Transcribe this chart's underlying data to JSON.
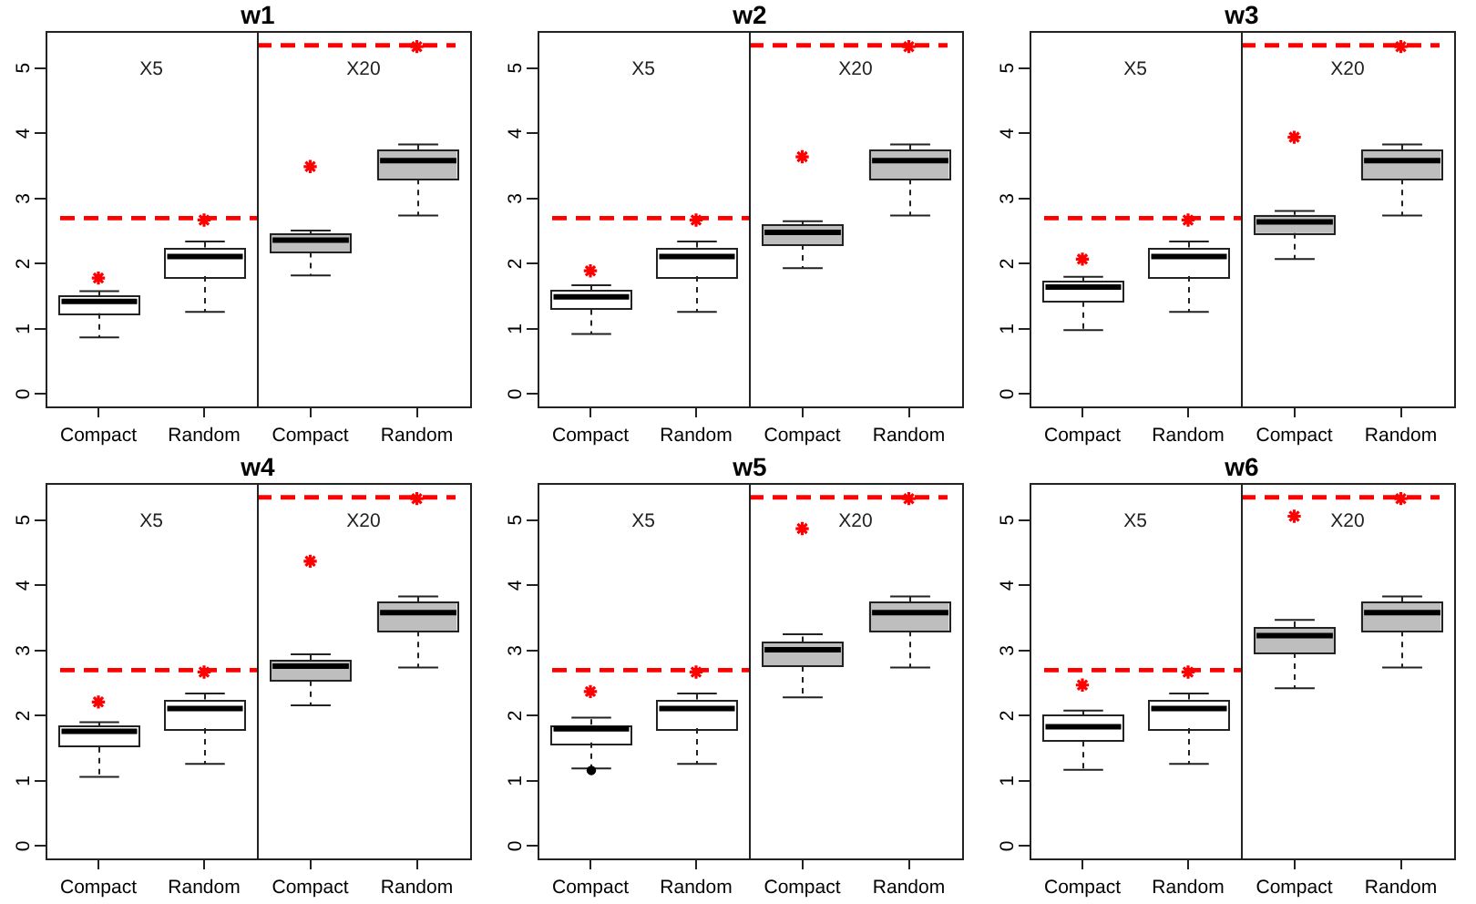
{
  "chart_data": [
    {
      "type": "box",
      "title": "w1",
      "categories": [
        "Compact",
        "Random"
      ],
      "series": [
        {
          "color": "#ffffff",
          "boxes": [
            {
              "low": 0.87,
              "q1": 1.24,
              "median": 1.42,
              "q3": 1.51,
              "high": 1.58
            },
            {
              "low": 1.26,
              "q1": 1.81,
              "median": 2.11,
              "q3": 2.25,
              "high": 2.34
            }
          ]
        },
        {
          "type": "scatter",
          "color": "#ff0000",
          "x": [
            "Compact",
            "Random"
          ],
          "values": [
            1.78,
            2.67
          ]
        }
      ],
      "ylim": [
        -0.19,
        5.57
      ],
      "yticks": [
        0,
        1,
        2,
        3,
        4,
        5
      ],
      "marker": "cross",
      "ref_lines": [
        {
          "axis": "y",
          "value": 2.7,
          "color": "#ff0000",
          "line_style": "dashed"
        }
      ],
      "annotations": [
        "X5"
      ]
    },
    {
      "type": "box",
      "categories": [
        "Compact",
        "Random"
      ],
      "series": [
        {
          "color": "#bebebe",
          "boxes": [
            {
              "low": 1.82,
              "q1": 2.18,
              "median": 2.36,
              "q3": 2.46,
              "high": 2.51
            },
            {
              "low": 2.74,
              "q1": 3.3,
              "median": 3.58,
              "q3": 3.74,
              "high": 3.83
            }
          ]
        },
        {
          "type": "scatter",
          "color": "#ff0000",
          "x": [
            "Compact",
            "Random"
          ],
          "values": [
            3.49,
            5.33
          ]
        }
      ],
      "ylim": [
        -0.19,
        5.57
      ],
      "tick_labels": "x",
      "marker": "cross",
      "ref_lines": [
        {
          "axis": "y",
          "value": 5.35,
          "color": "#ff0000",
          "line_style": "dashed"
        }
      ],
      "annotations": [
        "X20"
      ]
    },
    {
      "type": "box",
      "title": "w2",
      "categories": [
        "Compact",
        "Random"
      ],
      "series": [
        {
          "color": "#ffffff",
          "boxes": [
            {
              "low": 0.92,
              "q1": 1.3,
              "median": 1.49,
              "q3": 1.59,
              "high": 1.67
            },
            {
              "low": 1.26,
              "q1": 1.81,
              "median": 2.11,
              "q3": 2.25,
              "high": 2.34
            }
          ]
        },
        {
          "type": "scatter",
          "color": "#ff0000",
          "x": [
            "Compact",
            "Random"
          ],
          "values": [
            1.89,
            2.67
          ]
        }
      ],
      "ylim": [
        -0.19,
        5.57
      ],
      "yticks": [
        0,
        1,
        2,
        3,
        4,
        5
      ],
      "marker": "cross",
      "ref_lines": [
        {
          "axis": "y",
          "value": 2.7,
          "color": "#ff0000",
          "line_style": "dashed"
        }
      ],
      "annotations": [
        "X5"
      ]
    },
    {
      "type": "box",
      "categories": [
        "Compact",
        "Random"
      ],
      "series": [
        {
          "color": "#bebebe",
          "boxes": [
            {
              "low": 1.93,
              "q1": 2.3,
              "median": 2.48,
              "q3": 2.6,
              "high": 2.65
            },
            {
              "low": 2.74,
              "q1": 3.3,
              "median": 3.58,
              "q3": 3.74,
              "high": 3.83
            }
          ]
        },
        {
          "type": "scatter",
          "color": "#ff0000",
          "x": [
            "Compact",
            "Random"
          ],
          "values": [
            3.64,
            5.33
          ]
        }
      ],
      "ylim": [
        -0.19,
        5.57
      ],
      "tick_labels": "x",
      "marker": "cross",
      "ref_lines": [
        {
          "axis": "y",
          "value": 5.35,
          "color": "#ff0000",
          "line_style": "dashed"
        }
      ],
      "annotations": [
        "X20"
      ]
    },
    {
      "type": "box",
      "title": "w3",
      "categories": [
        "Compact",
        "Random"
      ],
      "series": [
        {
          "color": "#ffffff",
          "boxes": [
            {
              "low": 0.98,
              "q1": 1.42,
              "median": 1.64,
              "q3": 1.74,
              "high": 1.8
            },
            {
              "low": 1.26,
              "q1": 1.81,
              "median": 2.11,
              "q3": 2.25,
              "high": 2.34
            }
          ]
        },
        {
          "type": "scatter",
          "color": "#ff0000",
          "x": [
            "Compact",
            "Random"
          ],
          "values": [
            2.07,
            2.67
          ]
        }
      ],
      "ylim": [
        -0.19,
        5.57
      ],
      "yticks": [
        0,
        1,
        2,
        3,
        4,
        5
      ],
      "marker": "cross",
      "ref_lines": [
        {
          "axis": "y",
          "value": 2.7,
          "color": "#ff0000",
          "line_style": "dashed"
        }
      ],
      "annotations": [
        "X5"
      ]
    },
    {
      "type": "box",
      "categories": [
        "Compact",
        "Random"
      ],
      "series": [
        {
          "color": "#bebebe",
          "boxes": [
            {
              "low": 2.07,
              "q1": 2.47,
              "median": 2.64,
              "q3": 2.75,
              "high": 2.81
            },
            {
              "low": 2.74,
              "q1": 3.3,
              "median": 3.58,
              "q3": 3.74,
              "high": 3.83
            }
          ]
        },
        {
          "type": "scatter",
          "color": "#ff0000",
          "x": [
            "Compact",
            "Random"
          ],
          "values": [
            3.94,
            5.33
          ]
        }
      ],
      "ylim": [
        -0.19,
        5.57
      ],
      "tick_labels": "x",
      "marker": "cross",
      "ref_lines": [
        {
          "axis": "y",
          "value": 5.35,
          "color": "#ff0000",
          "line_style": "dashed"
        }
      ],
      "annotations": [
        "X20"
      ]
    },
    {
      "type": "box",
      "title": "w4",
      "categories": [
        "Compact",
        "Random"
      ],
      "series": [
        {
          "color": "#ffffff",
          "boxes": [
            {
              "low": 1.06,
              "q1": 1.52,
              "median": 1.76,
              "q3": 1.84,
              "high": 1.9
            },
            {
              "low": 1.26,
              "q1": 1.81,
              "median": 2.11,
              "q3": 2.25,
              "high": 2.34
            }
          ]
        },
        {
          "type": "scatter",
          "color": "#ff0000",
          "x": [
            "Compact",
            "Random"
          ],
          "values": [
            2.21,
            2.67
          ]
        }
      ],
      "ylim": [
        -0.19,
        5.57
      ],
      "yticks": [
        0,
        1,
        2,
        3,
        4,
        5
      ],
      "marker": "cross",
      "ref_lines": [
        {
          "axis": "y",
          "value": 2.7,
          "color": "#ff0000",
          "line_style": "dashed"
        }
      ],
      "annotations": [
        "X5"
      ]
    },
    {
      "type": "box",
      "categories": [
        "Compact",
        "Random"
      ],
      "series": [
        {
          "color": "#bebebe",
          "boxes": [
            {
              "low": 2.16,
              "q1": 2.54,
              "median": 2.76,
              "q3": 2.85,
              "high": 2.94
            },
            {
              "low": 2.74,
              "q1": 3.3,
              "median": 3.58,
              "q3": 3.74,
              "high": 3.83
            }
          ]
        },
        {
          "type": "scatter",
          "color": "#ff0000",
          "x": [
            "Compact",
            "Random"
          ],
          "values": [
            4.37,
            5.33
          ]
        }
      ],
      "ylim": [
        -0.19,
        5.57
      ],
      "tick_labels": "x",
      "marker": "cross",
      "ref_lines": [
        {
          "axis": "y",
          "value": 5.35,
          "color": "#ff0000",
          "line_style": "dashed"
        }
      ],
      "annotations": [
        "X20"
      ]
    },
    {
      "type": "box",
      "title": "w5",
      "categories": [
        "Compact",
        "Random"
      ],
      "series": [
        {
          "color": "#ffffff",
          "boxes": [
            {
              "low": 1.19,
              "q1": 1.59,
              "median": 1.8,
              "q3": 1.86,
              "high": 1.97,
              "outliers": [
                1.16
              ]
            },
            {
              "low": 1.26,
              "q1": 1.81,
              "median": 2.11,
              "q3": 2.25,
              "high": 2.34
            }
          ]
        },
        {
          "type": "scatter",
          "color": "#ff0000",
          "x": [
            "Compact",
            "Random"
          ],
          "values": [
            2.37,
            2.67
          ]
        }
      ],
      "ylim": [
        -0.19,
        5.57
      ],
      "yticks": [
        0,
        1,
        2,
        3,
        4,
        5
      ],
      "marker": "cross",
      "ref_lines": [
        {
          "axis": "y",
          "value": 2.7,
          "color": "#ff0000",
          "line_style": "dashed"
        }
      ],
      "annotations": [
        "X5"
      ]
    },
    {
      "type": "box",
      "categories": [
        "Compact",
        "Random"
      ],
      "series": [
        {
          "color": "#bebebe",
          "boxes": [
            {
              "low": 2.28,
              "q1": 2.76,
              "median": 3.01,
              "q3": 3.13,
              "high": 3.25
            },
            {
              "low": 2.74,
              "q1": 3.3,
              "median": 3.58,
              "q3": 3.74,
              "high": 3.83
            }
          ]
        },
        {
          "type": "scatter",
          "color": "#ff0000",
          "x": [
            "Compact",
            "Random"
          ],
          "values": [
            4.87,
            5.33
          ]
        }
      ],
      "ylim": [
        -0.19,
        5.57
      ],
      "tick_labels": "x",
      "marker": "cross",
      "ref_lines": [
        {
          "axis": "y",
          "value": 5.35,
          "color": "#ff0000",
          "line_style": "dashed"
        }
      ],
      "annotations": [
        "X20"
      ]
    },
    {
      "type": "box",
      "title": "w6",
      "categories": [
        "Compact",
        "Random"
      ],
      "series": [
        {
          "color": "#ffffff",
          "boxes": [
            {
              "low": 1.17,
              "q1": 1.61,
              "median": 1.83,
              "q3": 2.01,
              "high": 2.08
            },
            {
              "low": 1.26,
              "q1": 1.81,
              "median": 2.11,
              "q3": 2.25,
              "high": 2.34
            }
          ]
        },
        {
          "type": "scatter",
          "color": "#ff0000",
          "x": [
            "Compact",
            "Random"
          ],
          "values": [
            2.47,
            2.67
          ]
        }
      ],
      "ylim": [
        -0.19,
        5.57
      ],
      "yticks": [
        0,
        1,
        2,
        3,
        4,
        5
      ],
      "marker": "cross",
      "ref_lines": [
        {
          "axis": "y",
          "value": 2.7,
          "color": "#ff0000",
          "line_style": "dashed"
        }
      ],
      "annotations": [
        "X5"
      ]
    },
    {
      "type": "box",
      "categories": [
        "Compact",
        "Random"
      ],
      "series": [
        {
          "color": "#bebebe",
          "boxes": [
            {
              "low": 2.42,
              "q1": 2.97,
              "median": 3.23,
              "q3": 3.36,
              "high": 3.47
            },
            {
              "low": 2.74,
              "q1": 3.3,
              "median": 3.58,
              "q3": 3.74,
              "high": 3.83
            }
          ]
        },
        {
          "type": "scatter",
          "color": "#ff0000",
          "x": [
            "Compact",
            "Random"
          ],
          "values": [
            5.06,
            5.33
          ]
        }
      ],
      "ylim": [
        -0.19,
        5.57
      ],
      "tick_labels": "x",
      "marker": "cross",
      "ref_lines": [
        {
          "axis": "y",
          "value": 5.35,
          "color": "#ff0000",
          "line_style": "dashed"
        }
      ],
      "annotations": [
        "X20"
      ]
    }
  ]
}
